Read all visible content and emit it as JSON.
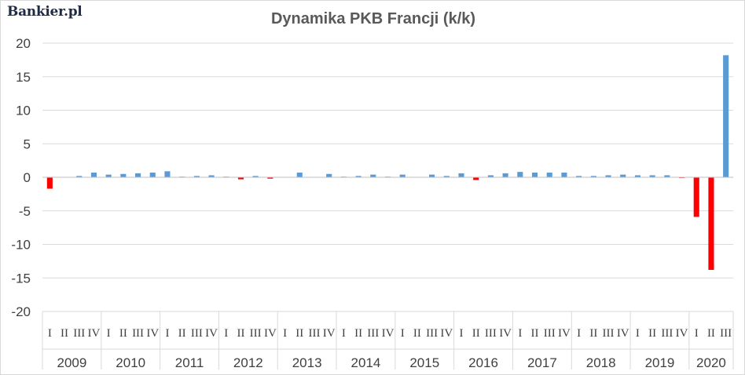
{
  "logo": "Bankier.pl",
  "chart_data": {
    "type": "bar",
    "title": "Dynamika PKB Francji (k/k)",
    "xlabel": "",
    "ylabel": "",
    "ylim": [
      -20,
      20
    ],
    "yticks": [
      20,
      15,
      10,
      5,
      0,
      -5,
      -10,
      -15,
      -20
    ],
    "grid": true,
    "legend": "none",
    "colors": {
      "positive": "#5b9bd5",
      "negative": "#ff0000"
    },
    "groups": [
      {
        "year": "2009",
        "quarters": [
          "I",
          "II",
          "III",
          "IV"
        ],
        "values": [
          -1.7,
          0.0,
          0.2,
          0.7
        ]
      },
      {
        "year": "2010",
        "quarters": [
          "I",
          "II",
          "III",
          "IV"
        ],
        "values": [
          0.4,
          0.5,
          0.6,
          0.7
        ]
      },
      {
        "year": "2011",
        "quarters": [
          "I",
          "II",
          "III",
          "IV"
        ],
        "values": [
          0.9,
          0.1,
          0.2,
          0.3
        ]
      },
      {
        "year": "2012",
        "quarters": [
          "I",
          "II",
          "III",
          "IV"
        ],
        "values": [
          0.1,
          -0.3,
          0.2,
          -0.2
        ]
      },
      {
        "year": "2013",
        "quarters": [
          "I",
          "II",
          "III",
          "IV"
        ],
        "values": [
          0.0,
          0.7,
          0.0,
          0.5
        ]
      },
      {
        "year": "2014",
        "quarters": [
          "I",
          "II",
          "III",
          "IV"
        ],
        "values": [
          0.1,
          0.2,
          0.4,
          0.1
        ]
      },
      {
        "year": "2015",
        "quarters": [
          "I",
          "II",
          "III",
          "IV"
        ],
        "values": [
          0.4,
          0.0,
          0.4,
          0.2
        ]
      },
      {
        "year": "2016",
        "quarters": [
          "I",
          "II",
          "III",
          "IV"
        ],
        "values": [
          0.6,
          -0.4,
          0.3,
          0.6
        ]
      },
      {
        "year": "2017",
        "quarters": [
          "I",
          "II",
          "III",
          "IV"
        ],
        "values": [
          0.8,
          0.7,
          0.7,
          0.7
        ]
      },
      {
        "year": "2018",
        "quarters": [
          "I",
          "II",
          "III",
          "IV"
        ],
        "values": [
          0.2,
          0.2,
          0.3,
          0.4
        ]
      },
      {
        "year": "2019",
        "quarters": [
          "I",
          "II",
          "III",
          "IV"
        ],
        "values": [
          0.3,
          0.3,
          0.3,
          -0.1
        ]
      },
      {
        "year": "2020",
        "quarters": [
          "I",
          "II",
          "III"
        ],
        "values": [
          -5.9,
          -13.8,
          18.2
        ]
      }
    ]
  }
}
